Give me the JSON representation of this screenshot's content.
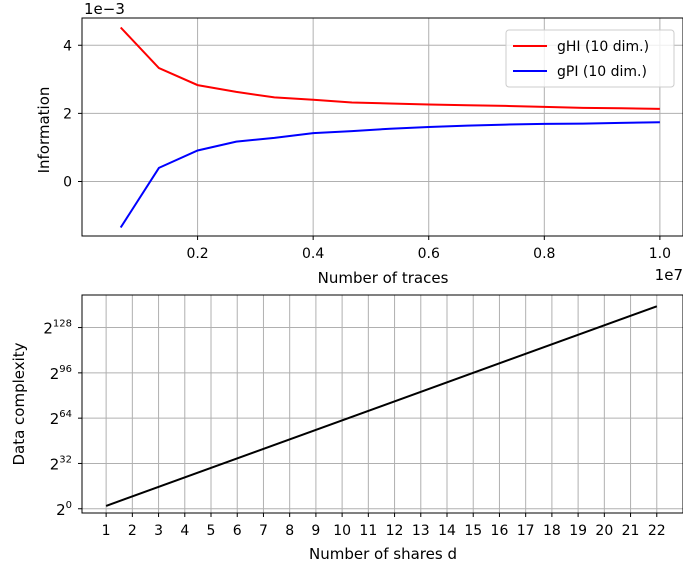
{
  "chart_data": [
    {
      "type": "line",
      "offset_text": "1e−3",
      "x_offset_text": "1e7",
      "xlabel": "Number of traces",
      "ylabel": "Information",
      "x_tick_labels": [
        "0.2",
        "0.4",
        "0.6",
        "0.8",
        "1.0"
      ],
      "y_tick_labels": [
        "0",
        "2",
        "4"
      ],
      "xlim": [
        0.0,
        1.04
      ],
      "ylim": [
        -1.6,
        4.8
      ],
      "x_ticks": [
        0.2,
        0.4,
        0.6,
        0.8,
        1.0
      ],
      "y_ticks": [
        0,
        2,
        4
      ],
      "grid": true,
      "legend_position": "top-right",
      "x": [
        0.067,
        0.133,
        0.2,
        0.267,
        0.333,
        0.4,
        0.467,
        0.533,
        0.6,
        0.667,
        0.733,
        0.8,
        0.867,
        0.933,
        1.0
      ],
      "series": [
        {
          "name": "gHI (10 dim.)",
          "color": "#ff0000",
          "values": [
            4.52,
            3.33,
            2.83,
            2.63,
            2.47,
            2.4,
            2.32,
            2.29,
            2.26,
            2.24,
            2.22,
            2.19,
            2.16,
            2.15,
            2.13
          ]
        },
        {
          "name": "gPI (10 dim.)",
          "color": "#0000ff",
          "values": [
            -1.35,
            0.4,
            0.91,
            1.17,
            1.28,
            1.42,
            1.48,
            1.55,
            1.6,
            1.64,
            1.67,
            1.69,
            1.7,
            1.72,
            1.74
          ]
        }
      ]
    },
    {
      "type": "line",
      "xlabel": "Number of shares d",
      "ylabel": "Data complexity",
      "x_tick_labels": [
        "1",
        "2",
        "3",
        "4",
        "5",
        "6",
        "7",
        "8",
        "9",
        "10",
        "11",
        "12",
        "13",
        "14",
        "15",
        "16",
        "17",
        "18",
        "19",
        "20",
        "21",
        "22"
      ],
      "y_tick_base": "2",
      "y_tick_exponents": [
        "0",
        "32",
        "64",
        "96",
        "128"
      ],
      "xlim": [
        0.08,
        23.0
      ],
      "ylim_log2": [
        -3,
        151
      ],
      "grid": true,
      "scale_y": "log2",
      "x": [
        1,
        22
      ],
      "series": [
        {
          "color": "#000000",
          "values_log2": [
            2,
            143
          ]
        }
      ]
    }
  ]
}
